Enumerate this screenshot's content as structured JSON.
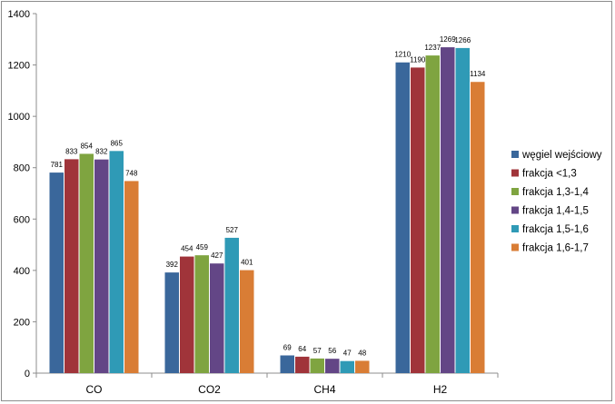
{
  "chart_data": {
    "type": "bar",
    "title": "",
    "xlabel": "",
    "ylabel": "",
    "ylim": [
      0,
      1400
    ],
    "yticks": [
      0,
      200,
      400,
      600,
      800,
      1000,
      1200,
      1400
    ],
    "grid": false,
    "legend_position": "right",
    "categories": [
      "CO",
      "CO2",
      "CH4",
      "H2"
    ],
    "series": [
      {
        "name": "węgiel wejściowy",
        "color": "#3a679b",
        "values": [
          781,
          392,
          69,
          1210
        ]
      },
      {
        "name": "frakcja <1,3",
        "color": "#a0343a",
        "values": [
          833,
          454,
          64,
          1190
        ]
      },
      {
        "name": "frakcja 1,3-1,4",
        "color": "#7fa440",
        "values": [
          854,
          459,
          57,
          1237
        ]
      },
      {
        "name": "frakcja 1,4-1,5",
        "color": "#634686",
        "values": [
          832,
          427,
          56,
          1269
        ]
      },
      {
        "name": "frakcja 1,5-1,6",
        "color": "#2f9ab6",
        "values": [
          865,
          527,
          47,
          1266
        ]
      },
      {
        "name": "frakcja 1,6-1,7",
        "color": "#d97d35",
        "values": [
          748,
          401,
          48,
          1134
        ]
      }
    ]
  }
}
